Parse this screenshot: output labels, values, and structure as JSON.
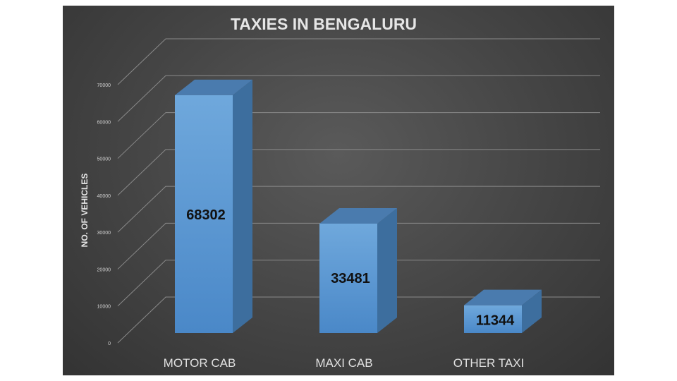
{
  "chart_data": {
    "type": "bar",
    "title": "TAXIES IN BENGALURU",
    "xlabel": "",
    "ylabel": "NO. OF VEHICLES",
    "categories": [
      "MOTOR CAB",
      "MAXI CAB",
      "OTHER TAXI"
    ],
    "values": [
      68302,
      33481,
      11344
    ],
    "ylim": [
      0,
      70000
    ],
    "yticks": [
      0,
      10000,
      20000,
      30000,
      40000,
      50000,
      60000,
      70000
    ],
    "ytick_labels": [
      "0",
      "10000",
      "20000",
      "30000",
      "40000",
      "50000",
      "60000",
      "70000"
    ],
    "grid": true,
    "legend": "none",
    "three_d": true,
    "colors": {
      "bar_front": "#5b9bd5",
      "bar_front_light": "#6fa8dc",
      "bar_side": "#3d6e9e",
      "bar_top": "#4a7bae",
      "background": "#4a4a4a"
    }
  }
}
